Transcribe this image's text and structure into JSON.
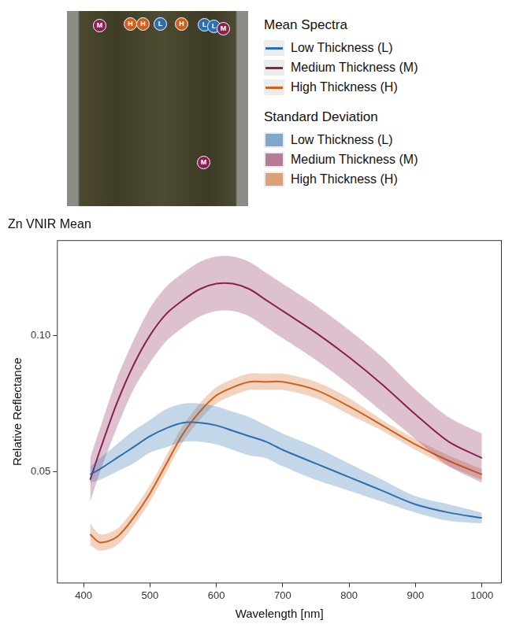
{
  "chart_data": {
    "type": "line",
    "title": "Zn VNIR Mean",
    "x_label": "Wavelength [nm]",
    "y_label": "Relative Reflectance",
    "legend_groups": [
      "Mean Spectra",
      "Standard Deviation"
    ],
    "image_markers": [
      "M",
      "H",
      "H",
      "L",
      "H",
      "L",
      "L",
      "M",
      "M"
    ],
    "x": [
      410,
      425,
      450,
      475,
      500,
      525,
      550,
      575,
      600,
      625,
      650,
      675,
      700,
      750,
      800,
      850,
      900,
      950,
      1000
    ],
    "series": [
      {
        "name": "Low Thickness (L)",
        "color": "#2a6fb0",
        "values": [
          0.049,
          0.051,
          0.055,
          0.059,
          0.063,
          0.066,
          0.068,
          0.068,
          0.067,
          0.065,
          0.063,
          0.061,
          0.058,
          0.053,
          0.048,
          0.043,
          0.038,
          0.035,
          0.033
        ],
        "sd": [
          0.003,
          0.004,
          0.005,
          0.006,
          0.006,
          0.007,
          0.007,
          0.007,
          0.007,
          0.007,
          0.007,
          0.006,
          0.006,
          0.006,
          0.005,
          0.004,
          0.003,
          0.003,
          0.002
        ]
      },
      {
        "name": "Medium Thickness (M)",
        "color": "#8a1f52",
        "values": [
          0.047,
          0.058,
          0.075,
          0.089,
          0.1,
          0.108,
          0.113,
          0.117,
          0.119,
          0.119,
          0.117,
          0.113,
          0.109,
          0.101,
          0.092,
          0.082,
          0.071,
          0.061,
          0.055
        ],
        "sd": [
          0.008,
          0.008,
          0.009,
          0.009,
          0.01,
          0.01,
          0.01,
          0.01,
          0.01,
          0.01,
          0.01,
          0.01,
          0.01,
          0.01,
          0.01,
          0.01,
          0.009,
          0.009,
          0.009
        ]
      },
      {
        "name": "High Thickness (H)",
        "color": "#d2601a",
        "values": [
          0.027,
          0.024,
          0.026,
          0.033,
          0.042,
          0.053,
          0.064,
          0.072,
          0.078,
          0.081,
          0.083,
          0.083,
          0.083,
          0.08,
          0.074,
          0.067,
          0.06,
          0.054,
          0.049
        ],
        "sd": [
          0.004,
          0.003,
          0.003,
          0.003,
          0.003,
          0.003,
          0.003,
          0.003,
          0.003,
          0.003,
          0.003,
          0.003,
          0.003,
          0.003,
          0.003,
          0.002,
          0.002,
          0.002,
          0.002
        ]
      }
    ],
    "xlim": [
      360,
      1030
    ],
    "xticks": [
      400,
      500,
      600,
      700,
      800,
      900,
      1000
    ],
    "ylim": [
      0.009,
      0.135
    ],
    "yticks": [
      0.05,
      {
        "value": 0.1,
        "label": "0.10"
      }
    ],
    "grid": false
  }
}
